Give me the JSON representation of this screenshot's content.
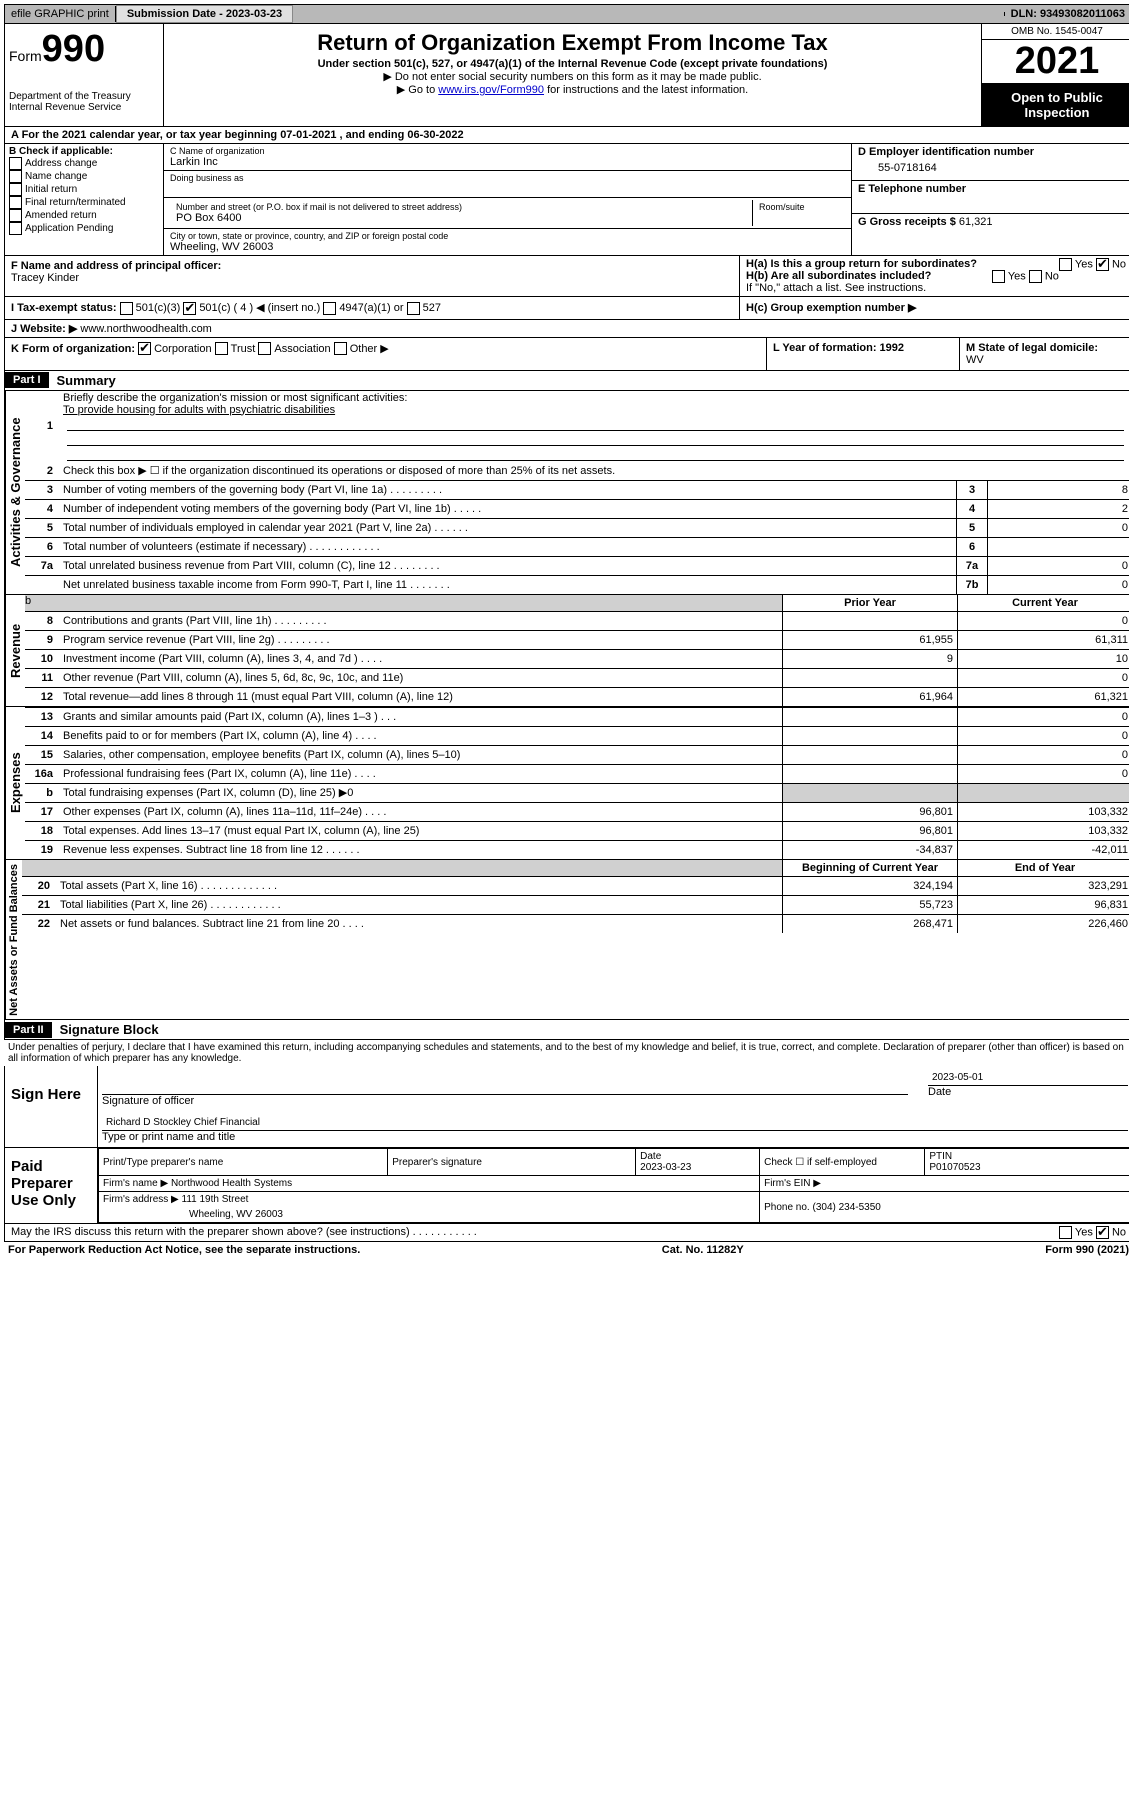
{
  "topbar": {
    "efile": "efile GRAPHIC print",
    "submission_label": "Submission Date - 2023-03-23",
    "dln": "DLN: 93493082011063"
  },
  "header": {
    "form_label": "Form",
    "form_number": "990",
    "dept": "Department of the Treasury",
    "irs": "Internal Revenue Service",
    "title": "Return of Organization Exempt From Income Tax",
    "subtitle": "Under section 501(c), 527, or 4947(a)(1) of the Internal Revenue Code (except private foundations)",
    "note1": "Do not enter social security numbers on this form as it may be made public.",
    "note2_pre": "Go to ",
    "note2_link": "www.irs.gov/Form990",
    "note2_post": " for instructions and the latest information.",
    "omb": "OMB No. 1545-0047",
    "year": "2021",
    "open": "Open to Public Inspection"
  },
  "row_a": "A For the 2021 calendar year, or tax year beginning 07-01-2021   , and ending 06-30-2022",
  "section_b": {
    "label": "B Check if applicable:",
    "items": [
      "Address change",
      "Name change",
      "Initial return",
      "Final return/terminated",
      "Amended return",
      "Application Pending"
    ]
  },
  "section_c": {
    "name_label": "C Name of organization",
    "name": "Larkin Inc",
    "dba_label": "Doing business as",
    "addr_label": "Number and street (or P.O. box if mail is not delivered to street address)",
    "room_label": "Room/suite",
    "addr": "PO Box 6400",
    "city_label": "City or town, state or province, country, and ZIP or foreign postal code",
    "city": "Wheeling, WV  26003"
  },
  "section_d": {
    "label": "D Employer identification number",
    "value": "55-0718164"
  },
  "section_e": {
    "label": "E Telephone number"
  },
  "section_g": {
    "label": "G Gross receipts $",
    "value": "61,321"
  },
  "section_f": {
    "label": "F Name and address of principal officer:",
    "name": "Tracey Kinder"
  },
  "section_h": {
    "ha": "H(a)  Is this a group return for subordinates?",
    "hb": "H(b)  Are all subordinates included?",
    "hb_note": "If \"No,\" attach a list. See instructions.",
    "hc": "H(c)  Group exemption number ▶",
    "yes": "Yes",
    "no": "No"
  },
  "section_i": {
    "label": "I    Tax-exempt status:",
    "opts": [
      "501(c)(3)",
      "501(c) ( 4 ) ◀ (insert no.)",
      "4947(a)(1) or",
      "527"
    ]
  },
  "section_j": {
    "label": "J    Website: ▶",
    "value": "www.northwoodhealth.com"
  },
  "section_k": {
    "label": "K Form of organization:",
    "opts": [
      "Corporation",
      "Trust",
      "Association",
      "Other ▶"
    ]
  },
  "section_l": {
    "label": "L Year of formation: 1992"
  },
  "section_m": {
    "label": "M State of legal domicile:",
    "value": "WV"
  },
  "part1": {
    "header": "Part I",
    "title": "Summary",
    "line1_label": "Briefly describe the organization's mission or most significant activities:",
    "line1_text": "To provide housing for adults with psychiatric disabilities",
    "line2": "Check this box ▶ ☐  if the organization discontinued its operations or disposed of more than 25% of its net assets.",
    "sections": {
      "gov": "Activities & Governance",
      "rev": "Revenue",
      "exp": "Expenses",
      "net": "Net Assets or Fund Balances"
    },
    "col_headers": {
      "prior": "Prior Year",
      "current": "Current Year",
      "begin": "Beginning of Current Year",
      "end": "End of Year"
    },
    "lines_gov": [
      {
        "n": "3",
        "d": "Number of voting members of the governing body (Part VI, line 1a)   .    .    .    .    .    .    .    .    .",
        "box": "3",
        "v": "8"
      },
      {
        "n": "4",
        "d": "Number of independent voting members of the governing body (Part VI, line 1b)  .    .    .    .    .",
        "box": "4",
        "v": "2"
      },
      {
        "n": "5",
        "d": "Total number of individuals employed in calendar year 2021 (Part V, line 2a)   .    .    .    .    .    .",
        "box": "5",
        "v": "0"
      },
      {
        "n": "6",
        "d": "Total number of volunteers (estimate if necessary)   .    .    .    .    .    .    .    .    .    .    .    .",
        "box": "6",
        "v": ""
      },
      {
        "n": "7a",
        "d": "Total unrelated business revenue from Part VIII, column (C), line 12  .    .    .    .    .    .    .    .",
        "box": "7a",
        "v": "0"
      },
      {
        "n": "",
        "d": "Net unrelated business taxable income from Form 990-T, Part I, line 11   .    .    .    .    .    .    .",
        "box": "7b",
        "v": "0"
      }
    ],
    "lines_rev": [
      {
        "n": "8",
        "d": "Contributions and grants (Part VIII, line 1h)    .    .    .    .    .    .    .    .    .",
        "p": "",
        "c": "0"
      },
      {
        "n": "9",
        "d": "Program service revenue (Part VIII, line 2g)    .    .    .    .    .    .    .    .    .",
        "p": "61,955",
        "c": "61,311"
      },
      {
        "n": "10",
        "d": "Investment income (Part VIII, column (A), lines 3, 4, and 7d )   .    .    .    .",
        "p": "9",
        "c": "10"
      },
      {
        "n": "11",
        "d": "Other revenue (Part VIII, column (A), lines 5, 6d, 8c, 9c, 10c, and 11e)",
        "p": "",
        "c": "0"
      },
      {
        "n": "12",
        "d": "Total revenue—add lines 8 through 11 (must equal Part VIII, column (A), line 12)",
        "p": "61,964",
        "c": "61,321"
      }
    ],
    "lines_exp": [
      {
        "n": "13",
        "d": "Grants and similar amounts paid (Part IX, column (A), lines 1–3 )   .    .    .",
        "p": "",
        "c": "0"
      },
      {
        "n": "14",
        "d": "Benefits paid to or for members (Part IX, column (A), line 4)   .    .    .    .",
        "p": "",
        "c": "0"
      },
      {
        "n": "15",
        "d": "Salaries, other compensation, employee benefits (Part IX, column (A), lines 5–10)",
        "p": "",
        "c": "0"
      },
      {
        "n": "16a",
        "d": "Professional fundraising fees (Part IX, column (A), line 11e)   .    .    .    .",
        "p": "",
        "c": "0"
      },
      {
        "n": "b",
        "d": "Total fundraising expenses (Part IX, column (D), line 25) ▶0",
        "p": "shade",
        "c": "shade"
      },
      {
        "n": "17",
        "d": "Other expenses (Part IX, column (A), lines 11a–11d, 11f–24e)  .    .    .    .",
        "p": "96,801",
        "c": "103,332"
      },
      {
        "n": "18",
        "d": "Total expenses. Add lines 13–17 (must equal Part IX, column (A), line 25)",
        "p": "96,801",
        "c": "103,332"
      },
      {
        "n": "19",
        "d": "Revenue less expenses. Subtract line 18 from line 12  .    .    .    .    .    .",
        "p": "-34,837",
        "c": "-42,011"
      }
    ],
    "lines_net": [
      {
        "n": "20",
        "d": "Total assets (Part X, line 16)  .    .    .    .    .    .    .    .    .    .    .    .    .",
        "p": "324,194",
        "c": "323,291"
      },
      {
        "n": "21",
        "d": "Total liabilities (Part X, line 26)   .    .    .    .    .    .    .    .    .    .    .    .",
        "p": "55,723",
        "c": "96,831"
      },
      {
        "n": "22",
        "d": "Net assets or fund balances. Subtract line 21 from line 20    .    .    .    .",
        "p": "268,471",
        "c": "226,460"
      }
    ]
  },
  "part2": {
    "header": "Part II",
    "title": "Signature Block",
    "penalty": "Under penalties of perjury, I declare that I have examined this return, including accompanying schedules and statements, and to the best of my knowledge and belief, it is true, correct, and complete. Declaration of preparer (other than officer) is based on all information of which preparer has any knowledge.",
    "sign_here": "Sign Here",
    "sig_officer": "Signature of officer",
    "sig_date": "2023-05-01",
    "date_label": "Date",
    "officer_name": "Richard D Stockley  Chief Financial",
    "type_label": "Type or print name and title",
    "paid": "Paid Preparer Use Only",
    "prep_name_label": "Print/Type preparer's name",
    "prep_sig_label": "Preparer's signature",
    "prep_date_label": "Date",
    "prep_date": "2023-03-23",
    "check_self": "Check ☐ if self-employed",
    "ptin_label": "PTIN",
    "ptin": "P01070523",
    "firm_name_label": "Firm's name     ▶",
    "firm_name": "Northwood Health Systems",
    "firm_ein_label": "Firm's EIN ▶",
    "firm_addr_label": "Firm's address ▶",
    "firm_addr1": "111 19th Street",
    "firm_addr2": "Wheeling, WV  26003",
    "phone_label": "Phone no.",
    "phone": "(304) 234-5350",
    "discuss": "May the IRS discuss this return with the preparer shown above? (see instructions)   .    .    .    .    .    .    .    .    .    .    ."
  },
  "footer": {
    "left": "For Paperwork Reduction Act Notice, see the separate instructions.",
    "mid": "Cat. No. 11282Y",
    "right": "Form 990 (2021)"
  }
}
